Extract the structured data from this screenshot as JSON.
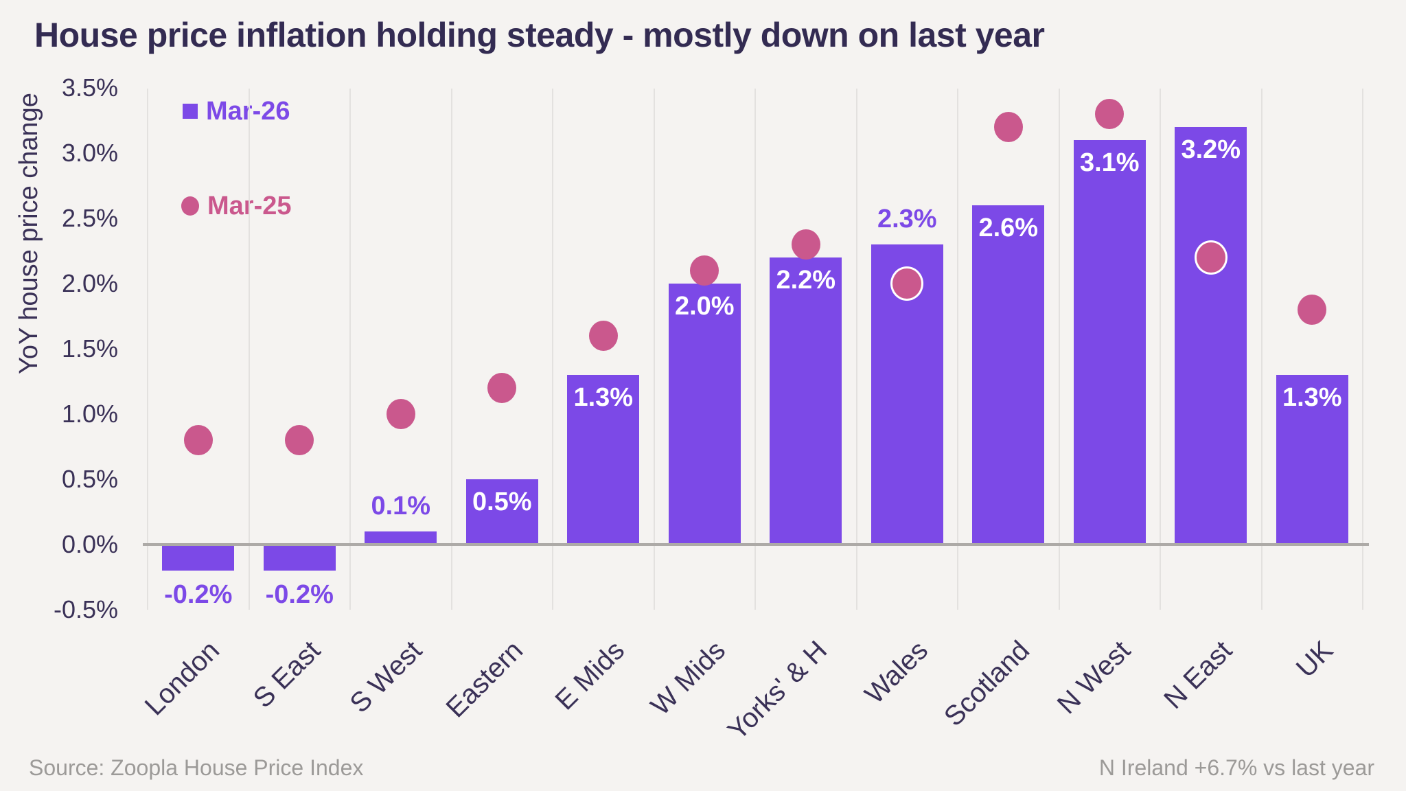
{
  "title": "House price inflation holding steady - mostly down on last year",
  "y_axis": {
    "title": "YoY house price change",
    "tick_labels": [
      "3.5%",
      "3.0%",
      "2.5%",
      "2.0%",
      "1.5%",
      "1.0%",
      "0.5%",
      "0.0%",
      "-0.5%"
    ],
    "tick_values": [
      3.5,
      3.0,
      2.5,
      2.0,
      1.5,
      1.0,
      0.5,
      0.0,
      -0.5
    ]
  },
  "legend": {
    "items": [
      {
        "label": "Mar-26",
        "marker": "square-icon",
        "color": "#7C49E7"
      },
      {
        "label": "Mar-25",
        "marker": "circle-icon",
        "color": "#CA588D"
      }
    ]
  },
  "footer": {
    "source": "Source: Zoopla House Price Index",
    "note": "N Ireland +6.7% vs last year"
  },
  "colors": {
    "background": "#F5F3F1",
    "bar": "#7C49E7",
    "dot": "#CA588D",
    "dot_outline": "#FFFFFF",
    "title_text": "#332B52",
    "axis_text": "#3A3157",
    "grid": "#E3E1DF",
    "zero_line": "#ADAAA7",
    "label_inside": "#FFFFFF",
    "label_outside": "#7C49E7",
    "footer_text": "#9C9A98"
  },
  "chart_data": {
    "type": "bar",
    "title": "House price inflation holding steady - mostly down on last year",
    "xlabel": "",
    "ylabel": "YoY house price change",
    "ylim": [
      -0.5,
      3.5
    ],
    "grid": "vertical-only",
    "legend_position": "top-left-inside",
    "categories": [
      "London",
      "S East",
      "S West",
      "Eastern",
      "E Mids",
      "W Mids",
      "Yorks' & H",
      "Wales",
      "Scotland",
      "N West",
      "N East",
      "UK"
    ],
    "series": [
      {
        "name": "Mar-26",
        "type": "bar",
        "values": [
          -0.2,
          -0.2,
          0.1,
          0.5,
          1.3,
          2.0,
          2.2,
          2.3,
          2.6,
          3.1,
          3.2,
          1.3
        ]
      },
      {
        "name": "Mar-25",
        "type": "scatter",
        "values": [
          0.8,
          0.8,
          1.0,
          1.2,
          1.6,
          2.1,
          2.3,
          2.0,
          3.2,
          3.3,
          2.2,
          1.8
        ]
      }
    ],
    "bar_labels": [
      "-0.2%",
      "-0.2%",
      "0.1%",
      "0.5%",
      "1.3%",
      "2.0%",
      "2.2%",
      "2.3%",
      "2.6%",
      "3.1%",
      "3.2%",
      "1.3%"
    ],
    "bar_label_positions": [
      "below",
      "below",
      "above",
      "inside",
      "inside",
      "inside",
      "inside",
      "above",
      "inside",
      "inside",
      "inside",
      "inside"
    ],
    "dot_outlined": [
      false,
      false,
      false,
      false,
      false,
      false,
      false,
      true,
      false,
      false,
      true,
      false
    ]
  }
}
